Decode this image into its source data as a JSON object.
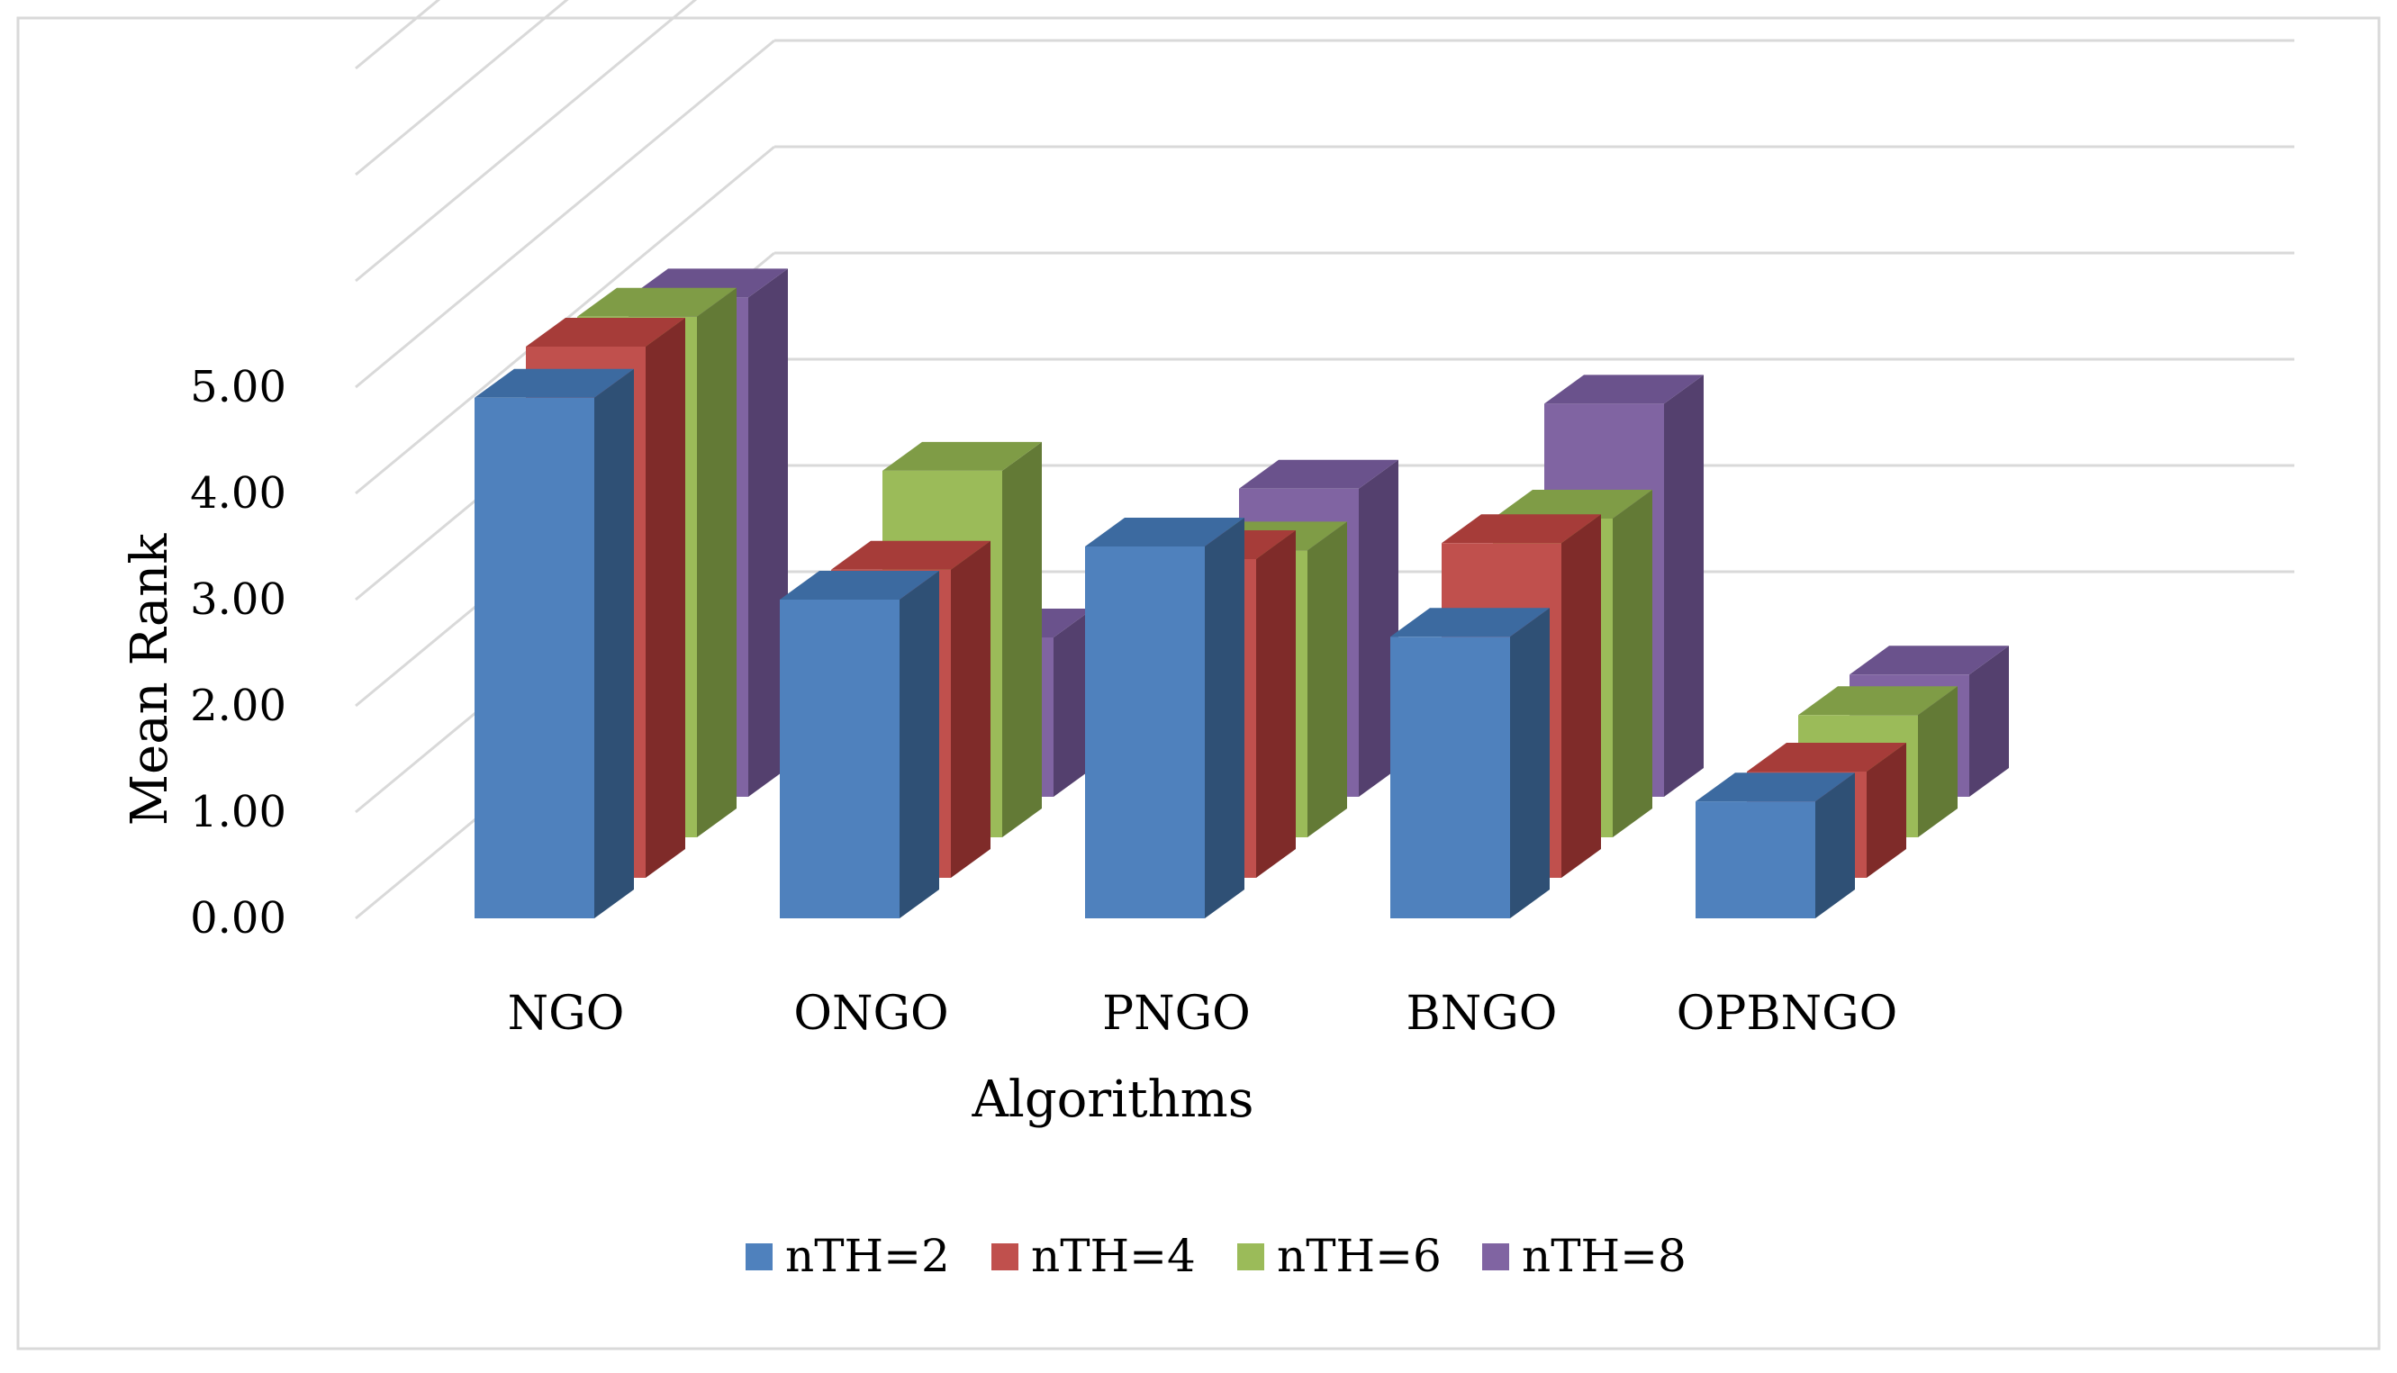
{
  "chart_data": {
    "type": "bar",
    "subtype": "3d-clustered-column",
    "title": "",
    "xlabel": "Algorithms",
    "ylabel": "Mean Rank",
    "categories": [
      "NGO",
      "ONGO",
      "PNGO",
      "BNGO",
      "OPBNGO"
    ],
    "ylim": [
      0,
      5
    ],
    "yticks": [
      "0.00",
      "1.00",
      "2.00",
      "3.00",
      "4.00",
      "5.00"
    ],
    "grid": true,
    "legend_position": "bottom",
    "series": [
      {
        "name": "nTH=2",
        "values": [
          4.9,
          3.0,
          3.5,
          2.65,
          1.1
        ]
      },
      {
        "name": "nTH=4",
        "values": [
          5.0,
          2.9,
          3.0,
          3.15,
          1.0
        ]
      },
      {
        "name": "nTH=6",
        "values": [
          4.9,
          3.45,
          2.7,
          3.0,
          1.15
        ]
      },
      {
        "name": "nTH=8",
        "values": [
          4.7,
          1.5,
          2.9,
          3.7,
          1.15
        ]
      }
    ]
  },
  "colors": {
    "series_front": [
      "#4f81bd",
      "#c0504d",
      "#9bbb59",
      "#8064a2"
    ],
    "series_side": [
      "#2f5075",
      "#7f2b29",
      "#637a36",
      "#54406e"
    ],
    "series_top": [
      "#3c6aa0",
      "#a63c39",
      "#7f9c46",
      "#6a528c"
    ],
    "grid": "#d9d9d9",
    "frame": "#d9d9d9"
  }
}
